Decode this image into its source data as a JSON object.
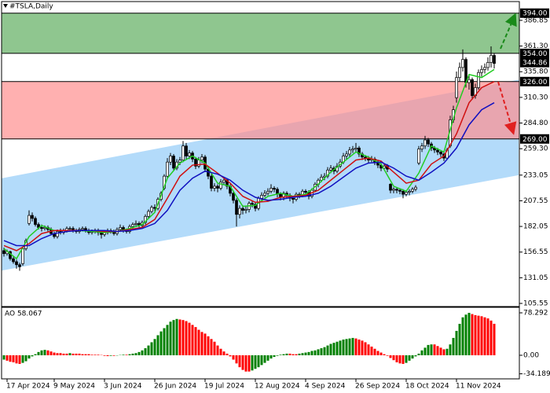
{
  "chart_data": {
    "type": "candlestick",
    "title": "#TSLA,Daily",
    "categories": [
      null,
      "17 Apr 2024",
      null,
      null,
      null,
      null,
      null,
      null,
      null,
      null,
      null,
      null,
      null,
      null,
      null,
      null,
      "9 May 2024",
      null,
      null,
      null,
      null,
      null,
      null,
      null,
      null,
      null,
      null,
      null,
      null,
      null,
      null,
      null,
      "3 Jun 2024",
      null,
      null,
      null,
      null,
      null,
      null,
      null,
      null,
      null,
      null,
      null,
      null,
      null,
      null,
      null,
      "26 Jun 2024",
      null,
      null,
      null,
      null,
      null,
      null,
      null,
      null,
      null,
      null,
      null,
      null,
      null,
      null,
      null,
      "19 Jul 2024",
      null,
      null,
      null,
      null,
      null,
      null,
      null,
      null,
      null,
      null,
      null,
      null,
      null,
      null,
      null,
      "12 Aug 2024",
      null,
      null,
      null,
      null,
      null,
      null,
      null,
      null,
      null,
      null,
      null,
      null,
      null,
      null,
      null,
      "4 Sep 2024",
      null,
      null,
      null,
      null,
      null,
      null,
      null,
      null,
      null,
      null,
      null,
      null,
      null,
      null,
      null,
      "26 Sep 2024",
      null,
      null,
      null,
      null,
      null,
      null,
      null,
      null,
      null,
      null,
      null,
      null,
      null,
      null,
      null,
      "18 Oct 2024",
      null,
      null,
      null,
      null,
      null,
      null,
      null,
      null,
      null,
      null,
      null,
      null,
      null,
      null,
      null,
      "11 Nov 2024",
      null,
      null,
      null,
      null,
      null,
      null,
      null,
      null,
      null,
      null,
      null,
      null
    ],
    "open": [
      158,
      155,
      157,
      150,
      147,
      144,
      145,
      160,
      185,
      193,
      190,
      184,
      181,
      180,
      181,
      179,
      175,
      172,
      177,
      176,
      178,
      180,
      180,
      178,
      177,
      179,
      180,
      178,
      176,
      177,
      178,
      176,
      174,
      176,
      178,
      177,
      175,
      179,
      181,
      178,
      177,
      182,
      184,
      185,
      183,
      186,
      192,
      197,
      201,
      200,
      209,
      220,
      232,
      246,
      252,
      240,
      246,
      248,
      262,
      252,
      255,
      249,
      242,
      248,
      251,
      239,
      232,
      220,
      222,
      220,
      226,
      228,
      222,
      215,
      208,
      194,
      200,
      198,
      199,
      205,
      204,
      200,
      210,
      213,
      215,
      217,
      220,
      219,
      214,
      211,
      215,
      213,
      210,
      209,
      214,
      213,
      217,
      216,
      212,
      218,
      224,
      228,
      231,
      232,
      238,
      240,
      237,
      242,
      246,
      252,
      254,
      258,
      259,
      260,
      254,
      251,
      250,
      248,
      249,
      246,
      243,
      240,
      242,
      224,
      218,
      219,
      218,
      217,
      214,
      216,
      217,
      219,
      245,
      259,
      262,
      268,
      264,
      260,
      258,
      256,
      254,
      250,
      262,
      288,
      310,
      330,
      340,
      348,
      325,
      328,
      312,
      320,
      335,
      338,
      340,
      345,
      352
    ],
    "high": [
      161,
      159,
      158,
      152,
      149,
      146,
      162,
      170,
      198,
      196,
      192,
      186,
      184,
      183,
      183,
      181,
      177,
      179,
      180,
      180,
      182,
      182,
      182,
      180,
      181,
      182,
      182,
      180,
      179,
      180,
      180,
      178,
      178,
      180,
      180,
      179,
      181,
      184,
      183,
      180,
      184,
      186,
      188,
      187,
      188,
      194,
      199,
      203,
      204,
      211,
      217,
      234,
      250,
      255,
      254,
      249,
      251,
      267,
      265,
      258,
      257,
      251,
      251,
      254,
      253,
      241,
      234,
      225,
      224,
      229,
      231,
      230,
      224,
      217,
      210,
      203,
      203,
      202,
      207,
      207,
      206,
      212,
      216,
      218,
      220,
      224,
      222,
      221,
      216,
      217,
      217,
      215,
      212,
      216,
      216,
      219,
      219,
      218,
      220,
      226,
      230,
      234,
      235,
      241,
      243,
      242,
      245,
      249,
      255,
      257,
      261,
      262,
      265,
      262,
      256,
      253,
      252,
      252,
      251,
      248,
      245,
      244,
      244,
      225,
      221,
      221,
      220,
      219,
      218,
      219,
      221,
      223,
      262,
      265,
      272,
      270,
      266,
      262,
      260,
      258,
      256,
      260,
      292,
      302,
      336,
      345,
      358,
      350,
      332,
      330,
      324,
      338,
      342,
      344,
      350,
      361,
      354
    ],
    "low": [
      152,
      153,
      148,
      145,
      140,
      138,
      143,
      158,
      183,
      187,
      182,
      179,
      177,
      178,
      176,
      173,
      170,
      170,
      174,
      174,
      176,
      178,
      176,
      175,
      175,
      177,
      176,
      174,
      174,
      175,
      173,
      170,
      172,
      174,
      175,
      173,
      173,
      177,
      176,
      175,
      175,
      180,
      182,
      181,
      181,
      184,
      190,
      195,
      197,
      198,
      207,
      218,
      230,
      243,
      237,
      238,
      243,
      246,
      249,
      249,
      246,
      239,
      240,
      245,
      236,
      229,
      217,
      217,
      216,
      218,
      223,
      219,
      212,
      205,
      182,
      190,
      194,
      195,
      196,
      201,
      197,
      198,
      207,
      211,
      213,
      215,
      216,
      211,
      208,
      208,
      210,
      207,
      205,
      207,
      210,
      211,
      213,
      209,
      210,
      216,
      221,
      226,
      228,
      230,
      235,
      234,
      235,
      240,
      244,
      249,
      251,
      255,
      256,
      251,
      248,
      247,
      245,
      246,
      243,
      240,
      237,
      238,
      236,
      215,
      215,
      215,
      214,
      210,
      212,
      213,
      215,
      217,
      243,
      256,
      259,
      261,
      257,
      255,
      253,
      251,
      247,
      248,
      260,
      285,
      305,
      326,
      336,
      320,
      318,
      308,
      309,
      318,
      331,
      334,
      337,
      340,
      339
    ],
    "close": [
      155,
      157,
      150,
      147,
      144,
      142,
      160,
      168,
      193,
      190,
      184,
      181,
      180,
      181,
      179,
      175,
      172,
      177,
      176,
      178,
      180,
      180,
      178,
      177,
      179,
      180,
      178,
      176,
      177,
      178,
      176,
      174,
      176,
      178,
      177,
      175,
      179,
      181,
      178,
      177,
      182,
      184,
      185,
      183,
      186,
      192,
      197,
      201,
      200,
      209,
      215,
      232,
      246,
      252,
      240,
      246,
      248,
      262,
      252,
      255,
      249,
      242,
      248,
      251,
      239,
      232,
      220,
      222,
      220,
      226,
      228,
      222,
      215,
      208,
      194,
      200,
      198,
      199,
      205,
      204,
      200,
      210,
      213,
      215,
      217,
      220,
      219,
      214,
      211,
      215,
      213,
      210,
      209,
      214,
      213,
      217,
      216,
      212,
      218,
      224,
      228,
      231,
      232,
      238,
      240,
      237,
      242,
      246,
      252,
      254,
      258,
      259,
      260,
      254,
      251,
      250,
      248,
      249,
      246,
      243,
      240,
      242,
      239,
      218,
      219,
      218,
      217,
      214,
      216,
      217,
      219,
      221,
      259,
      262,
      268,
      264,
      260,
      258,
      256,
      254,
      250,
      258,
      288,
      298,
      330,
      340,
      348,
      325,
      328,
      312,
      320,
      335,
      338,
      340,
      345,
      352,
      344
    ],
    "up_color": "#ffffff",
    "down_color": "#000000",
    "wick_color": "#000000",
    "ylim": [
      102.44,
      405.5
    ],
    "yticks": [
      386.85,
      {
        "value": 361.3,
        "label": "361.30"
      },
      {
        "value": 335.8,
        "label": "335.80"
      },
      {
        "value": 310.3,
        "label": "310.30"
      },
      {
        "value": 284.8,
        "label": "284.80"
      },
      {
        "value": 259.3,
        "label": "259.30"
      },
      233.05,
      207.55,
      182.05,
      156.55,
      131.05,
      105.55
    ],
    "levels": [
      {
        "value": 394,
        "label": "394.00"
      },
      {
        "value": 354,
        "label": "354.00"
      },
      {
        "value": 326,
        "label": "326.00"
      },
      {
        "value": 269,
        "label": "269.00"
      }
    ],
    "current_price": {
      "value": 344.86,
      "label": "344.86"
    },
    "zones": [
      {
        "from": 354,
        "to": 394,
        "color": "#5fae5f"
      },
      {
        "from": 269,
        "to": 326,
        "color": "#ff8f8f"
      }
    ],
    "channel": {
      "x": [
        -0.75,
        163.75
      ],
      "upper": [
        229.9,
        327.8
      ],
      "lower": [
        138.2,
        233.0
      ],
      "color": "#b3dbfa"
    },
    "ma_x": [
      0,
      4,
      8,
      12,
      16,
      20,
      24,
      28,
      32,
      36,
      40,
      44,
      48,
      52,
      56,
      60,
      64,
      68,
      72,
      76,
      80,
      84,
      88,
      92,
      96,
      100,
      104,
      108,
      112,
      116,
      120,
      124,
      128,
      132,
      136,
      140,
      144,
      148,
      152,
      156
    ],
    "ma": [
      {
        "color": "#22cc22",
        "values": [
          160,
          150,
          172,
          183,
          178,
          178,
          178,
          177,
          176,
          177,
          180,
          184,
          196,
          230,
          245,
          252,
          245,
          225,
          222,
          202,
          203,
          212,
          215,
          212,
          214,
          224,
          236,
          246,
          256,
          251,
          244,
          222,
          217,
          235,
          262,
          256,
          300,
          333,
          330,
          338
        ]
      },
      {
        "color": "#d01010",
        "values": [
          163,
          158,
          165,
          175,
          178,
          178,
          178,
          178,
          177,
          177,
          179,
          181,
          189,
          210,
          232,
          243,
          244,
          235,
          225,
          212,
          206,
          207,
          211,
          212,
          213,
          218,
          228,
          238,
          248,
          250,
          247,
          236,
          225,
          228,
          244,
          252,
          274,
          305,
          320,
          326
        ]
      },
      {
        "color": "#1010c0",
        "values": [
          168,
          163,
          163,
          170,
          175,
          177,
          178,
          178,
          178,
          177,
          178,
          180,
          185,
          198,
          218,
          230,
          237,
          234,
          228,
          218,
          211,
          208,
          209,
          211,
          212,
          215,
          222,
          231,
          240,
          245,
          246,
          240,
          232,
          228,
          236,
          245,
          260,
          283,
          298,
          305
        ]
      }
    ],
    "ao": {
      "label": "AO 58.067",
      "up_color": "#008000",
      "down_color": "#ff0000",
      "ylim": [
        -43.5,
        87
      ],
      "yticks": [
        78.292,
        {
          "value": 0,
          "label": "0.00"
        },
        -34.189
      ],
      "values": [
        -8,
        -10,
        -12,
        -13,
        -15,
        -16,
        -14,
        -11,
        -6,
        -2,
        2,
        6,
        9,
        10,
        9,
        7,
        5,
        4,
        4,
        3,
        3,
        4,
        3,
        3,
        3,
        2,
        2,
        2,
        1,
        1,
        1,
        0.5,
        -1,
        -1.5,
        -1,
        -1,
        -0.5,
        0.5,
        1,
        1,
        2,
        3,
        4,
        6,
        9,
        13,
        18,
        24,
        30,
        37,
        44,
        50,
        56,
        62,
        65,
        67,
        66,
        65,
        63,
        60,
        56,
        52,
        47,
        43,
        40,
        35,
        30,
        25,
        18,
        12,
        7,
        3,
        -2,
        -8,
        -15,
        -22,
        -27,
        -30,
        -30,
        -28,
        -25,
        -22,
        -18,
        -14,
        -10,
        -6,
        -3,
        -1,
        1,
        2,
        3,
        3,
        2,
        2,
        3,
        4,
        5,
        6,
        8,
        9,
        11,
        13,
        15,
        18,
        21,
        23,
        25,
        27,
        29,
        30,
        31,
        32,
        31,
        29,
        27,
        24,
        20,
        16,
        12,
        8,
        5,
        2,
        -1,
        -5,
        -9,
        -13,
        -15,
        -16,
        -14,
        -10,
        -6,
        -2,
        3,
        9,
        14,
        19,
        20,
        20,
        17,
        14,
        11,
        12,
        20,
        32,
        45,
        58,
        70,
        75,
        78.292,
        76,
        74,
        73,
        72,
        70,
        68,
        64,
        58.067
      ]
    }
  }
}
